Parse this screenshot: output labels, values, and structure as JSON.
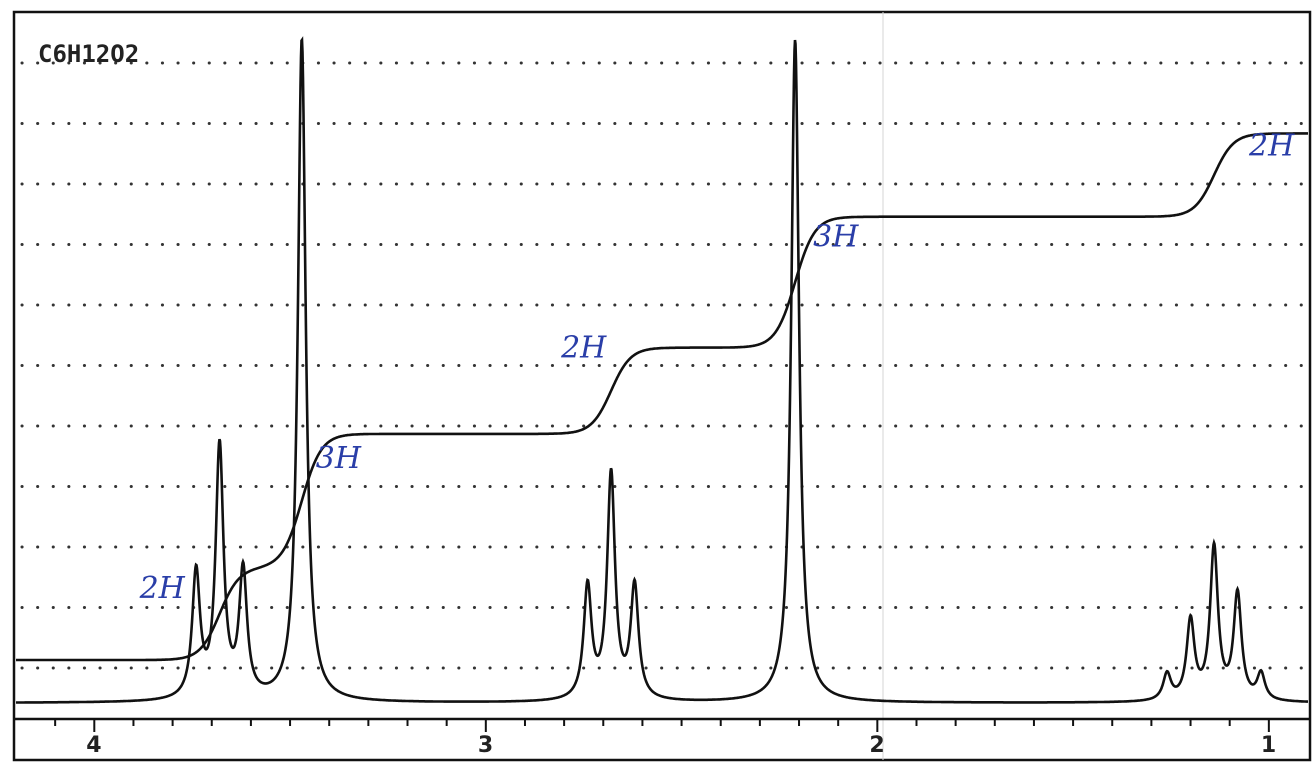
{
  "chart_data": {
    "type": "line",
    "title": "C6H12O2",
    "xlabel": "",
    "ylabel": "",
    "x_axis": {
      "reversed": true,
      "xlim": [
        4.2,
        0.9
      ],
      "tick_labels": [
        "4",
        "3",
        "2",
        "1"
      ],
      "ticks": [
        4,
        3,
        2,
        1
      ]
    },
    "grid": {
      "style": "dotted",
      "horizontal_lines": 11
    },
    "series": [
      {
        "peaks": [
          {
            "shift": 3.74,
            "height": 0.19,
            "width": 0.012
          },
          {
            "shift": 3.68,
            "height": 0.38,
            "width": 0.012
          },
          {
            "shift": 3.62,
            "height": 0.19,
            "width": 0.012
          },
          {
            "shift": 3.47,
            "height": 1.0,
            "width": 0.012
          },
          {
            "shift": 2.74,
            "height": 0.17,
            "width": 0.012
          },
          {
            "shift": 2.68,
            "height": 0.34,
            "width": 0.012
          },
          {
            "shift": 2.62,
            "height": 0.17,
            "width": 0.012
          },
          {
            "shift": 2.21,
            "height": 1.0,
            "width": 0.012
          },
          {
            "shift": 1.26,
            "height": 0.04,
            "width": 0.012
          },
          {
            "shift": 1.2,
            "height": 0.12,
            "width": 0.012
          },
          {
            "shift": 1.14,
            "height": 0.23,
            "width": 0.012
          },
          {
            "shift": 1.08,
            "height": 0.16,
            "width": 0.012
          },
          {
            "shift": 1.02,
            "height": 0.04,
            "width": 0.012
          }
        ]
      },
      {
        "integration_steps": [
          {
            "shift": 3.68,
            "level": 0.155,
            "label": "2H"
          },
          {
            "shift": 3.47,
            "level": 0.38,
            "label": "3H"
          },
          {
            "shift": 2.68,
            "level": 0.525,
            "label": "2H"
          },
          {
            "shift": 2.21,
            "level": 0.745,
            "label": "3H"
          },
          {
            "shift": 1.14,
            "level": 0.885,
            "label": "2H"
          }
        ]
      }
    ]
  }
}
